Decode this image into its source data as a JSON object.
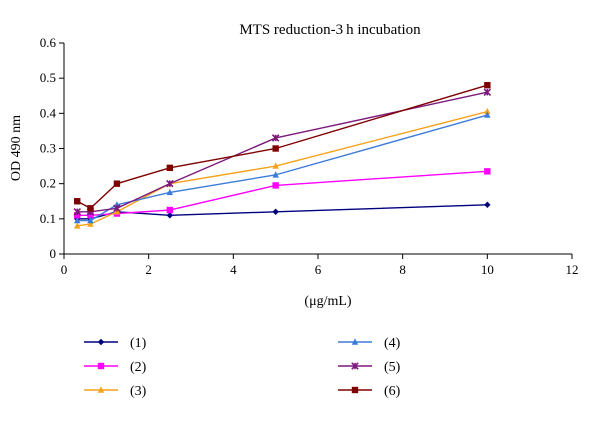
{
  "chart_data": {
    "type": "line",
    "title": "MTS reduction-3 h incubation",
    "xlabel": "(μg/mL)",
    "ylabel": "OD 490 nm",
    "xlim": [
      0,
      12
    ],
    "ylim": [
      0,
      0.6
    ],
    "xticks": [
      "0",
      "2",
      "4",
      "6",
      "8",
      "10",
      "12"
    ],
    "yticks": [
      "0",
      "0.1",
      "0.2",
      "0.3",
      "0.4",
      "0.5",
      "0.6"
    ],
    "grid": false,
    "legend_position": "bottom",
    "x": [
      0.3125,
      0.625,
      1.25,
      2.5,
      5,
      10
    ],
    "series": [
      {
        "name": "(1)",
        "color": "#00007f",
        "marker": "diamond",
        "values": [
          0.1,
          0.1,
          0.12,
          0.11,
          0.12,
          0.14
        ]
      },
      {
        "name": "(2)",
        "color": "#ff00ff",
        "marker": "square",
        "values": [
          0.11,
          0.11,
          0.115,
          0.125,
          0.195,
          0.235
        ]
      },
      {
        "name": "(3)",
        "color": "#f6a21b",
        "marker": "triangle",
        "values": [
          0.08,
          0.085,
          0.12,
          0.2,
          0.25,
          0.405
        ]
      },
      {
        "name": "(4)",
        "color": "#3d7bd9",
        "marker": "triangle",
        "values": [
          0.095,
          0.095,
          0.14,
          0.175,
          0.225,
          0.395
        ]
      },
      {
        "name": "(5)",
        "color": "#7b1a7b",
        "marker": "star",
        "values": [
          0.12,
          0.12,
          0.13,
          0.2,
          0.33,
          0.46
        ]
      },
      {
        "name": "(6)",
        "color": "#7f0000",
        "marker": "square",
        "values": [
          0.15,
          0.13,
          0.2,
          0.245,
          0.3,
          0.48
        ]
      }
    ]
  }
}
